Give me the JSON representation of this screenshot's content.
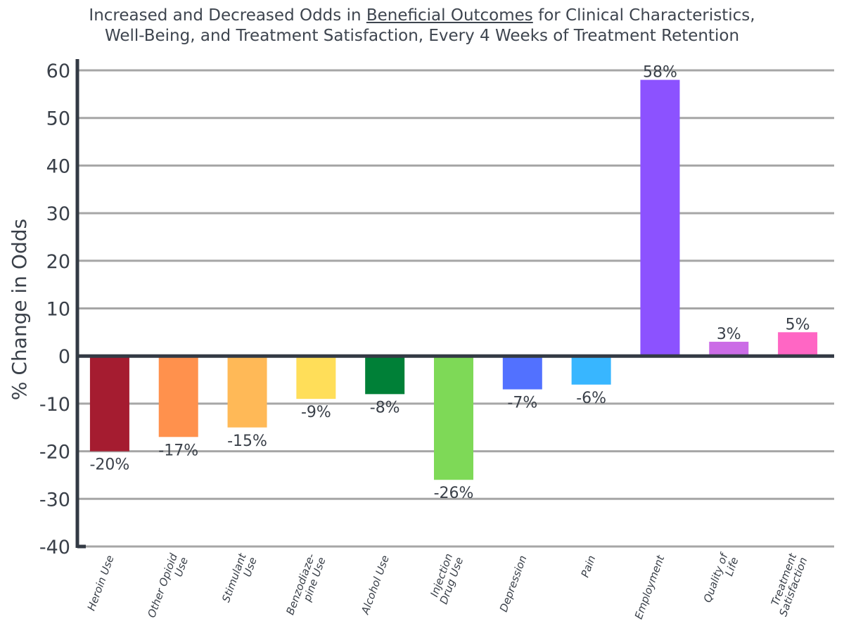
{
  "chart_data": {
    "type": "bar",
    "title": {
      "line1_before": "Increased and Decreased Odds in ",
      "line1_underlined": "Beneficial Outcomes",
      "line1_after": " for Clinical Characteristics,",
      "line2": "Well-Being, and Treatment Satisfaction, Every 4 Weeks of Treatment Retention"
    },
    "ylabel": "% Change in Odds",
    "xlabel": "",
    "ylim": [
      -40,
      60
    ],
    "yticks": [
      60,
      50,
      40,
      30,
      20,
      10,
      0,
      -10,
      -20,
      -30,
      -40
    ],
    "grid": true,
    "categories": [
      [
        "Heroin Use"
      ],
      [
        "Other Opioid",
        "Use"
      ],
      [
        "Stimulant",
        "Use"
      ],
      [
        "Benzodiaze-",
        "pine Use"
      ],
      [
        "Alcohol Use"
      ],
      [
        "Injection",
        "Drug Use"
      ],
      [
        "Depression"
      ],
      [
        "Pain"
      ],
      [
        "Employment"
      ],
      [
        "Quality of",
        "Life"
      ],
      [
        "Treatment",
        "Satisfaction"
      ]
    ],
    "values": [
      -20,
      -17,
      -15,
      -9,
      -8,
      -26,
      -7,
      -6,
      58,
      3,
      5
    ],
    "labels": [
      "-20%",
      "-17%",
      "-15%",
      "-9%",
      "-8%",
      "-26%",
      "-7%",
      "-6%",
      "58%",
      "3%",
      "5%"
    ],
    "colors": [
      "#a51c30",
      "#ff914d",
      "#ffb957",
      "#ffde59",
      "#008037",
      "#7ed957",
      "#5271ff",
      "#38b6ff",
      "#8c52ff",
      "#cb6ce6",
      "#ff66c4"
    ]
  }
}
